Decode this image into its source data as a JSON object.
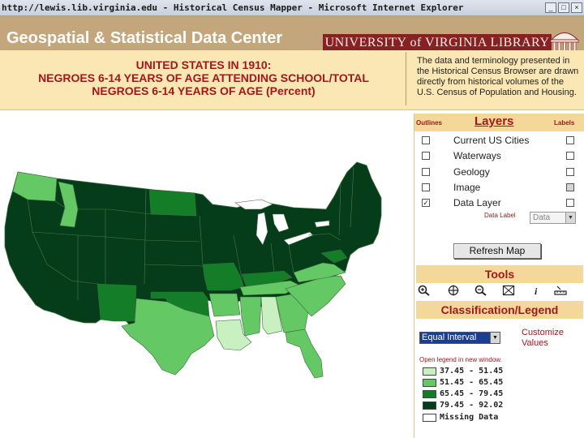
{
  "window": {
    "title": "http://lewis.lib.virginia.edu - Historical Census Mapper - Microsoft Internet Explorer",
    "controls": [
      "minimize-icon",
      "restore-icon",
      "close-icon"
    ]
  },
  "header": {
    "site_name": "Geospatial & Statistical Data Center",
    "library_name": "UNIVERSITY of VIRGINIA LIBRARY"
  },
  "map": {
    "title_line1": "UNITED STATES IN 1910:",
    "title_line2": "NEGROES 6-14 YEARS OF AGE ATTENDING SCHOOL/TOTAL",
    "title_line3": "NEGROES 6-14 YEARS OF AGE (Percent)",
    "description": "The data and terminology presented in the Historical Census Browser are drawn directly from historical volumes of the U.S. Census of Population and Housing."
  },
  "layers": {
    "heading": "Layers",
    "outlines_label": "Outlines",
    "labels_label": "Labels",
    "items": [
      {
        "label": "Current US Cities",
        "outline_checked": false,
        "label_checked": false
      },
      {
        "label": "Waterways",
        "outline_checked": false,
        "label_checked": false
      },
      {
        "label": "Geology",
        "outline_checked": false,
        "label_checked": false
      },
      {
        "label": "Image",
        "outline_checked": false,
        "label_checked": false
      },
      {
        "label": "Data Layer",
        "outline_checked": true,
        "label_checked": false
      }
    ],
    "data_label_text": "Data Label",
    "data_label_value": "Data",
    "refresh_button": "Refresh Map"
  },
  "tools": {
    "heading": "Tools",
    "icons": [
      "zoom-in-icon",
      "pan-icon",
      "zoom-out-icon",
      "full-extent-icon",
      "info-icon",
      "measure-icon"
    ]
  },
  "classification": {
    "heading": "Classification/Legend",
    "method": "Equal Interval",
    "customize_link": "Customize Values",
    "open_legend_link": "Open legend in new window.",
    "legend": [
      {
        "range": "37.45 - 51.45",
        "color": "#c8f0c0"
      },
      {
        "range": "51.45 - 65.45",
        "color": "#64c864"
      },
      {
        "range": "65.45 - 79.45",
        "color": "#147d28"
      },
      {
        "range": "79.45 - 92.02",
        "color": "#053c19"
      },
      {
        "range": "Missing Data",
        "color": "#ffffff"
      }
    ]
  },
  "colors": {
    "header_tan": "#c4a67c",
    "banner_cream": "#fbe7b4",
    "accent_red": "#a3171b",
    "uva_maroon": "#8a2024"
  }
}
